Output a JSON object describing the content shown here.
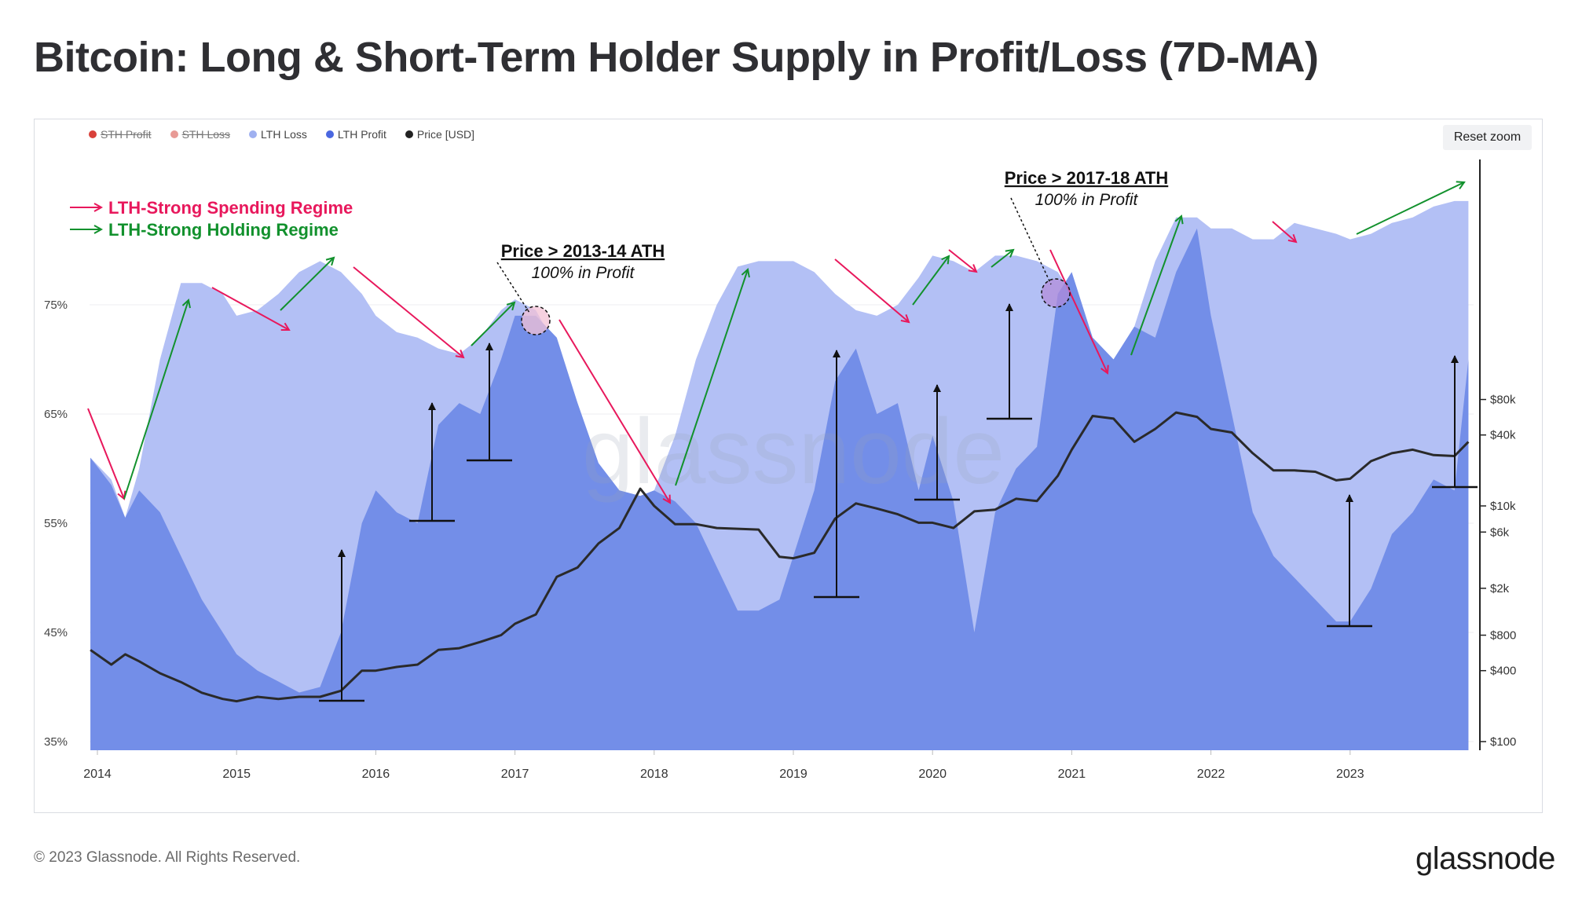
{
  "title": "Bitcoin: Long & Short-Term Holder Supply in Profit/Loss (7D-MA)",
  "legend": [
    {
      "label": "STH Profit",
      "color": "#d9413a",
      "disabled": true
    },
    {
      "label": "STH Loss",
      "color": "#e89a95",
      "disabled": true
    },
    {
      "label": "LTH Loss",
      "color": "#9fb0f0",
      "disabled": false
    },
    {
      "label": "LTH Profit",
      "color": "#4a67e0",
      "disabled": false
    },
    {
      "label": "Price [USD]",
      "color": "#222222",
      "disabled": false
    }
  ],
  "reset_zoom_label": "Reset zoom",
  "regime_legend": {
    "spending": "LTH-Strong Spending Regime",
    "holding": "LTH-Strong Holding Regime",
    "spending_color": "#e8185c",
    "holding_color": "#12912d"
  },
  "annotations": [
    {
      "title": "Price > 2013-14 ATH",
      "subtitle": "100% in Profit"
    },
    {
      "title": "Price > 2017-18 ATH",
      "subtitle": "100% in Profit"
    }
  ],
  "watermark": "glassnode",
  "footer": {
    "copyright": "© 2023 Glassnode. All Rights Reserved.",
    "logo": "glassnode"
  },
  "chart_data": {
    "type": "area",
    "title": "Bitcoin: Long & Short-Term Holder Supply in Profit/Loss (7D-MA)",
    "x_ticks": [
      "2014",
      "2015",
      "2016",
      "2017",
      "2018",
      "2019",
      "2020",
      "2021",
      "2022",
      "2023"
    ],
    "y_left_ticks": [
      "35%",
      "45%",
      "55%",
      "65%",
      "75%"
    ],
    "y_left_range": [
      35,
      80
    ],
    "y_right_ticks": [
      "$100",
      "$400",
      "$800",
      "$2k",
      "$6k",
      "$10k",
      "$40k",
      "$80k"
    ],
    "y_right_range": [
      100,
      100000
    ],
    "y_right_scale": "log",
    "x": [
      2013.95,
      2014.1,
      2014.2,
      2014.3,
      2014.45,
      2014.6,
      2014.75,
      2014.9,
      2015.0,
      2015.15,
      2015.3,
      2015.45,
      2015.6,
      2015.75,
      2015.9,
      2016.0,
      2016.15,
      2016.3,
      2016.45,
      2016.6,
      2016.75,
      2016.9,
      2017.0,
      2017.15,
      2017.3,
      2017.45,
      2017.6,
      2017.75,
      2017.9,
      2018.0,
      2018.15,
      2018.3,
      2018.45,
      2018.6,
      2018.75,
      2018.9,
      2019.0,
      2019.15,
      2019.3,
      2019.45,
      2019.6,
      2019.75,
      2019.9,
      2020.0,
      2020.15,
      2020.3,
      2020.45,
      2020.6,
      2020.75,
      2020.9,
      2021.0,
      2021.15,
      2021.3,
      2021.45,
      2021.6,
      2021.75,
      2021.9,
      2022.0,
      2022.15,
      2022.3,
      2022.45,
      2022.6,
      2022.75,
      2022.9,
      2023.0,
      2023.15,
      2023.3,
      2023.45,
      2023.6,
      2023.75,
      2023.85
    ],
    "series": [
      {
        "name": "LTH Loss",
        "color": "#b3c0f5",
        "values": [
          61,
          59,
          55.5,
          60,
          70,
          77,
          77,
          76,
          74,
          74.5,
          76,
          78,
          79,
          78,
          76,
          74,
          72.5,
          72,
          71,
          70.5,
          72,
          74.5,
          75.5,
          74.5,
          71,
          66,
          60.5,
          58,
          57.5,
          58,
          63,
          70,
          75,
          78.5,
          79,
          79,
          79,
          78,
          76,
          74.5,
          74,
          75,
          77.5,
          79.5,
          79,
          78,
          79.5,
          79.5,
          79,
          78,
          76,
          72,
          70,
          73,
          79,
          83,
          83,
          82,
          82,
          81,
          81,
          82.5,
          82,
          81.5,
          81,
          81.5,
          82.5,
          83,
          84,
          84.5,
          84.5
        ]
      },
      {
        "name": "LTH Profit",
        "color": "#738ee8",
        "values": [
          61,
          58.5,
          55.5,
          58,
          56,
          52,
          48,
          45,
          43,
          41.5,
          40.5,
          39.5,
          40,
          45,
          55,
          58,
          56,
          55,
          64,
          66,
          65,
          70,
          74,
          74,
          72,
          66,
          60.5,
          58,
          57.5,
          58,
          57,
          55,
          51,
          47,
          47,
          48,
          52,
          58,
          68,
          71,
          65,
          66,
          58,
          63,
          57,
          45,
          56,
          60,
          62,
          76,
          78,
          72,
          70,
          73,
          72,
          78,
          82,
          74,
          65,
          56,
          52,
          50,
          48,
          46,
          46,
          49,
          54,
          56,
          59,
          58,
          70
        ]
      },
      {
        "name": "Price [USD]",
        "color": "#2a2a2a",
        "values": [
          600,
          450,
          550,
          480,
          380,
          320,
          260,
          230,
          220,
          240,
          230,
          240,
          240,
          270,
          400,
          400,
          430,
          450,
          600,
          620,
          700,
          800,
          1000,
          1200,
          2500,
          3000,
          4800,
          6500,
          14000,
          10000,
          7000,
          7000,
          6500,
          6400,
          6300,
          3700,
          3600,
          4000,
          7800,
          10500,
          9500,
          8500,
          7200,
          7200,
          6500,
          9000,
          9300,
          11500,
          11000,
          18000,
          30000,
          58000,
          55000,
          35000,
          45000,
          62000,
          57000,
          45000,
          42000,
          28000,
          20000,
          20000,
          19500,
          16500,
          17000,
          24000,
          28000,
          30000,
          27000,
          26500,
          35000
        ]
      }
    ]
  }
}
